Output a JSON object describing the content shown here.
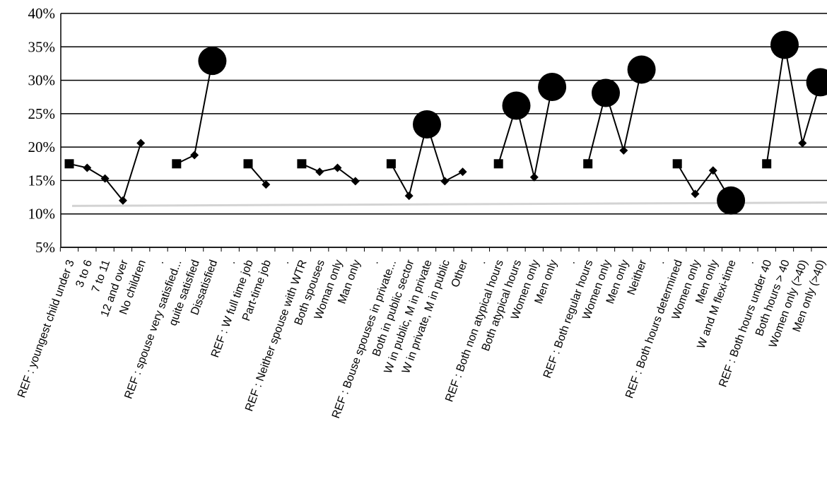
{
  "chart_data": {
    "type": "line",
    "title": "",
    "xlabel": "",
    "ylabel": "",
    "ylim": [
      5,
      40
    ],
    "y_ticks": [
      "40%",
      "35%",
      "30%",
      "25%",
      "20%",
      "15%",
      "10%",
      "5%"
    ],
    "grid": true,
    "legend": "none",
    "reference_line": {
      "from": 11.2,
      "to": 11.7,
      "color": "#d3d3d3"
    },
    "colors": {
      "line": "#000000",
      "marker": "#000000",
      "grid": "#000000",
      "reference": "#d3d3d3"
    },
    "groups": [
      {
        "categories": [
          "REF : youngest child under 3",
          "3 to 6",
          "7 to 11",
          "12 and over",
          "No children"
        ],
        "values": [
          17.5,
          16.9,
          15.3,
          12.0,
          20.6
        ],
        "markers": [
          "square",
          "diamond",
          "diamond",
          "diamond",
          "diamond"
        ]
      },
      {
        "categories": [
          "REF : spouse very satisfied...",
          "quite satisfied",
          "Dissatisfied"
        ],
        "values": [
          17.5,
          18.8,
          32.9
        ],
        "markers": [
          "square",
          "diamond",
          "circle"
        ]
      },
      {
        "categories": [
          "REF : W full time job",
          "Part-time job"
        ],
        "values": [
          17.5,
          14.4
        ],
        "markers": [
          "square",
          "diamond"
        ]
      },
      {
        "categories": [
          "REF : Neither spouse with WTR",
          "Both spouses",
          "Woman only",
          "Man only"
        ],
        "values": [
          17.5,
          16.3,
          16.9,
          14.9
        ],
        "markers": [
          "square",
          "diamond",
          "diamond",
          "diamond"
        ]
      },
      {
        "categories": [
          "REF : Bouse spouses in private...",
          "Both in public sector",
          "W in public, M in private",
          "W in private, M in public",
          "Other"
        ],
        "values": [
          17.5,
          12.7,
          23.4,
          14.9,
          16.3
        ],
        "markers": [
          "square",
          "diamond",
          "circle",
          "diamond",
          "diamond"
        ]
      },
      {
        "categories": [
          "REF : Both non atypical hours",
          "Both atypical hours",
          "Women only",
          "Men only"
        ],
        "values": [
          17.5,
          26.2,
          15.5,
          29.0
        ],
        "markers": [
          "square",
          "circle",
          "diamond",
          "circle"
        ]
      },
      {
        "categories": [
          "REF : Both regular hours",
          "Women only",
          "Men only",
          "Neither"
        ],
        "values": [
          17.5,
          28.1,
          19.5,
          31.6
        ],
        "markers": [
          "square",
          "circle",
          "diamond",
          "circle"
        ]
      },
      {
        "categories": [
          "REF : Both hours determined",
          "Women only",
          "Men only",
          "W and M flexi-time"
        ],
        "values": [
          17.5,
          13.0,
          16.5,
          12.0
        ],
        "markers": [
          "square",
          "diamond",
          "diamond",
          "circle"
        ]
      },
      {
        "categories": [
          "REF : Both hours under 40",
          "Both hours > 40",
          "Women only (>40)",
          "Men only (>40)"
        ],
        "values": [
          17.5,
          35.3,
          20.6,
          29.7
        ],
        "markers": [
          "square",
          "circle",
          "diamond",
          "circle"
        ]
      }
    ]
  }
}
